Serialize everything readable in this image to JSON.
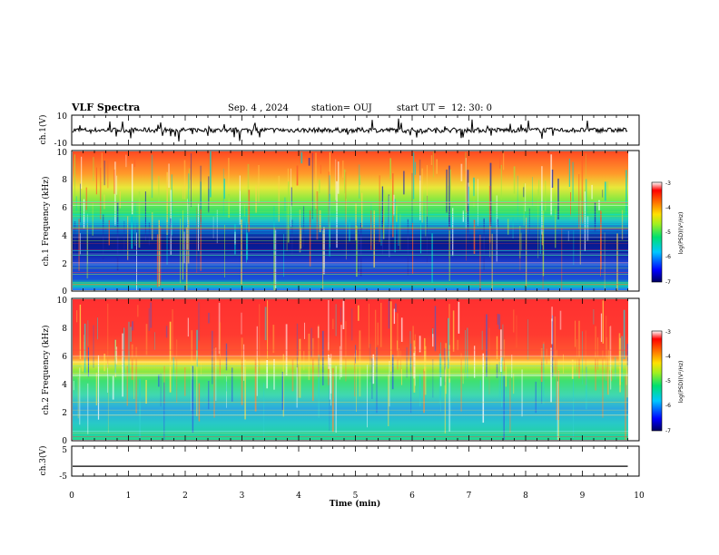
{
  "header": {
    "title": "VLF Spectra",
    "date": "Sep. 4 , 2024",
    "station": "station= OUJ",
    "start": "start UT =  12: 30: 0"
  },
  "colors": {
    "spectrum_low": "#00008b",
    "spectrum_mid": "#00e07a",
    "spectrum_high": "#ff2020",
    "trace": "#000000"
  },
  "chart_data": [
    {
      "type": "line",
      "panel": "ch1-waveform",
      "ylabel": "ch.1(V)",
      "ylim": [
        -10,
        10
      ],
      "y_ticks": [
        "10",
        "-10"
      ],
      "x": [
        0,
        1,
        2,
        3,
        4,
        5,
        6,
        7,
        8,
        9,
        9.8
      ],
      "series": [
        {
          "values": [
            0,
            0,
            0,
            0,
            0,
            0,
            0,
            0,
            0,
            0,
            0
          ]
        }
      ]
    },
    {
      "type": "heatmap",
      "panel": "ch1-spectrogram",
      "ylabel": "ch.1 Frequency (kHz)",
      "ylim": [
        0,
        10
      ],
      "y_ticks": [
        "0",
        "2",
        "4",
        "6",
        "8",
        "10"
      ],
      "x_range": [
        0,
        9.8
      ],
      "colorbar": {
        "label": "log(PSD)(V²/Hz)",
        "range": [
          -7,
          -3
        ],
        "ticks": [
          "-3",
          "-4",
          "-5",
          "-6",
          "-7"
        ]
      },
      "approx_log_psd_by_frequency": [
        {
          "freq_khz": 0.5,
          "value": -6.0
        },
        {
          "freq_khz": 2.5,
          "value": -6.3
        },
        {
          "freq_khz": 3.5,
          "value": -6.7
        },
        {
          "freq_khz": 4.5,
          "value": -5.5
        },
        {
          "freq_khz": 6.0,
          "value": -4.7
        },
        {
          "freq_khz": 8.0,
          "value": -4.0
        },
        {
          "freq_khz": 9.5,
          "value": -3.8
        }
      ]
    },
    {
      "type": "heatmap",
      "panel": "ch2-spectrogram",
      "ylabel": "ch.2 Frequency (kHz)",
      "ylim": [
        0,
        10
      ],
      "y_ticks": [
        "0",
        "2",
        "4",
        "6",
        "8",
        "10"
      ],
      "x_range": [
        0,
        9.8
      ],
      "colorbar": {
        "label": "log(PSD)(V²/Hz)",
        "range": [
          -7,
          -3
        ],
        "ticks": [
          "-3",
          "-4",
          "-5",
          "-6",
          "-7"
        ]
      },
      "approx_log_psd_by_frequency": [
        {
          "freq_khz": 1.0,
          "value": -5.3
        },
        {
          "freq_khz": 2.5,
          "value": -5.5
        },
        {
          "freq_khz": 4.0,
          "value": -5.0
        },
        {
          "freq_khz": 5.5,
          "value": -4.2
        },
        {
          "freq_khz": 7.5,
          "value": -3.6
        },
        {
          "freq_khz": 9.5,
          "value": -3.5
        }
      ]
    },
    {
      "type": "line",
      "panel": "ch3-waveform",
      "ylabel": "ch.3(V)",
      "ylim": [
        -5,
        5
      ],
      "y_ticks": [
        "5",
        "-5"
      ],
      "x": [
        0,
        9.8
      ],
      "series": [
        {
          "values": [
            -1.7,
            -1.7
          ]
        }
      ]
    }
  ],
  "x_axis": {
    "label": "Time (min)",
    "ticks": [
      "0",
      "1",
      "2",
      "3",
      "4",
      "5",
      "6",
      "7",
      "8",
      "9",
      "10"
    ]
  }
}
